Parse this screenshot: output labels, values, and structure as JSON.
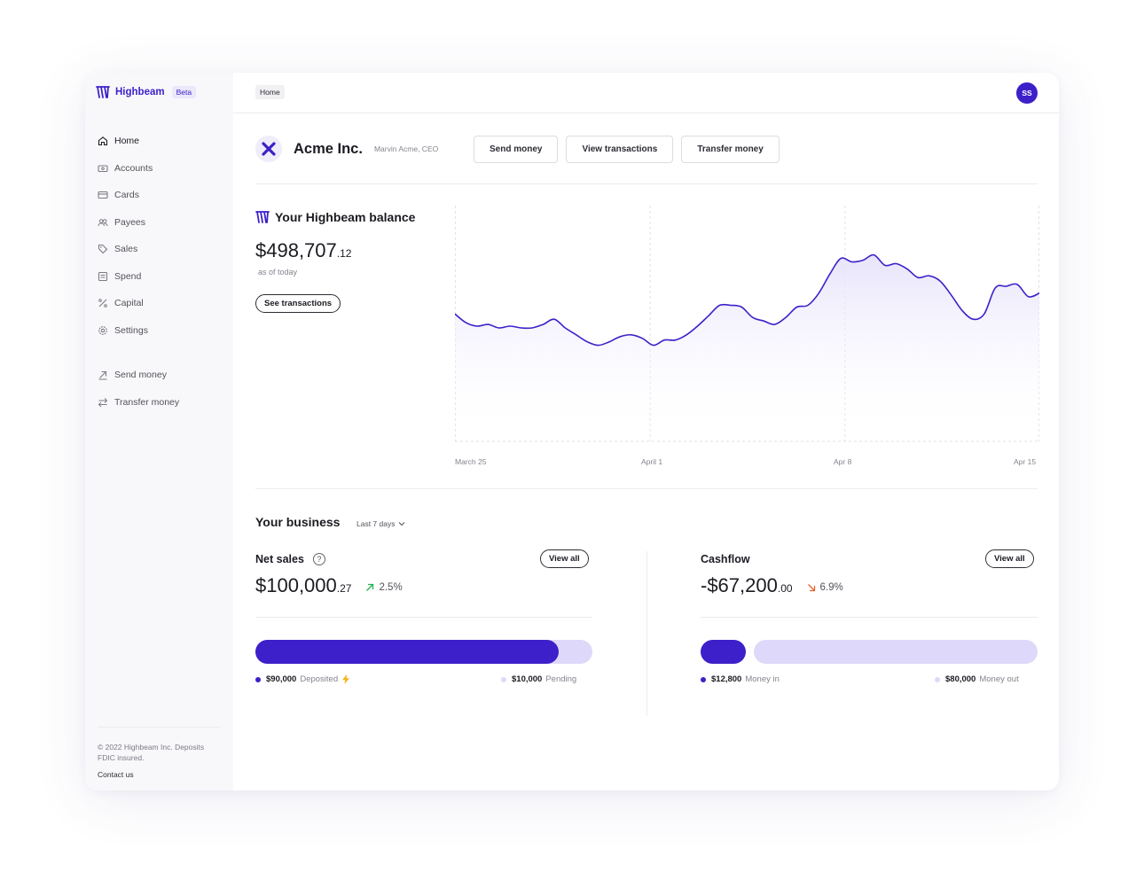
{
  "brand": {
    "name": "Highbeam",
    "badge": "Beta"
  },
  "sidebar": {
    "items": [
      {
        "label": "Home",
        "icon": "home-icon",
        "active": true
      },
      {
        "label": "Accounts",
        "icon": "accounts-icon"
      },
      {
        "label": "Cards",
        "icon": "card-icon"
      },
      {
        "label": "Payees",
        "icon": "payees-icon"
      },
      {
        "label": "Sales",
        "icon": "tag-icon"
      },
      {
        "label": "Spend",
        "icon": "receipt-icon"
      },
      {
        "label": "Capital",
        "icon": "percent-icon"
      },
      {
        "label": "Settings",
        "icon": "gear-icon"
      }
    ],
    "quick_actions": [
      {
        "label": "Send money",
        "icon": "arrow-up-right-icon"
      },
      {
        "label": "Transfer money",
        "icon": "swap-icon"
      }
    ],
    "footer": {
      "copyright": "© 2022 Highbeam Inc. Deposits FDIC insured.",
      "contact": "Contact us"
    }
  },
  "topbar": {
    "breadcrumb": "Home",
    "avatar_initials": "SS"
  },
  "company": {
    "name": "Acme Inc.",
    "person": "Marvin Acme, CEO"
  },
  "actions": {
    "send": "Send money",
    "view": "View transactions",
    "transfer": "Transfer money"
  },
  "balance": {
    "title": "Your Highbeam balance",
    "amount_main": "$498,707",
    "amount_cents": ".12",
    "as_of": "as of today",
    "see_transactions": "See transactions"
  },
  "chart_data": {
    "type": "area",
    "x_tick_labels": [
      "March 25",
      "April 1",
      "Apr 8",
      "Apr 15"
    ],
    "values": [
      58,
      53,
      51,
      52,
      50,
      51,
      50,
      50,
      52,
      55,
      50,
      46,
      42,
      40,
      42,
      45,
      46,
      44,
      40,
      43,
      43,
      46,
      51,
      57,
      63,
      63,
      62,
      56,
      54,
      52,
      56,
      62,
      63,
      70,
      81,
      90,
      88,
      89,
      92,
      86,
      87,
      84,
      79,
      80,
      77,
      69,
      60,
      55,
      58,
      73,
      74,
      75,
      68,
      70
    ]
  },
  "business": {
    "title": "Your business",
    "range": "Last 7 days",
    "net_sales": {
      "title": "Net sales",
      "view_all": "View all",
      "amount_main": "$100,000",
      "amount_cents": ".27",
      "change": "2.5%",
      "deposited_amount": "$90,000",
      "deposited_label": "Deposited",
      "pending_amount": "$10,000",
      "pending_label": "Pending",
      "deposited_fraction": 0.9
    },
    "cashflow": {
      "title": "Cashflow",
      "view_all": "View all",
      "amount_main": "-$67,200",
      "amount_cents": ".00",
      "change": "6.9%",
      "in_amount": "$12,800",
      "in_label": "Money in",
      "out_amount": "$80,000",
      "out_label": "Money out",
      "in_fraction": 0.138
    }
  },
  "colors": {
    "accent": "#3d20c9",
    "accent_light": "#ded9fa",
    "up": "#22b24c",
    "down": "#e5622b"
  }
}
